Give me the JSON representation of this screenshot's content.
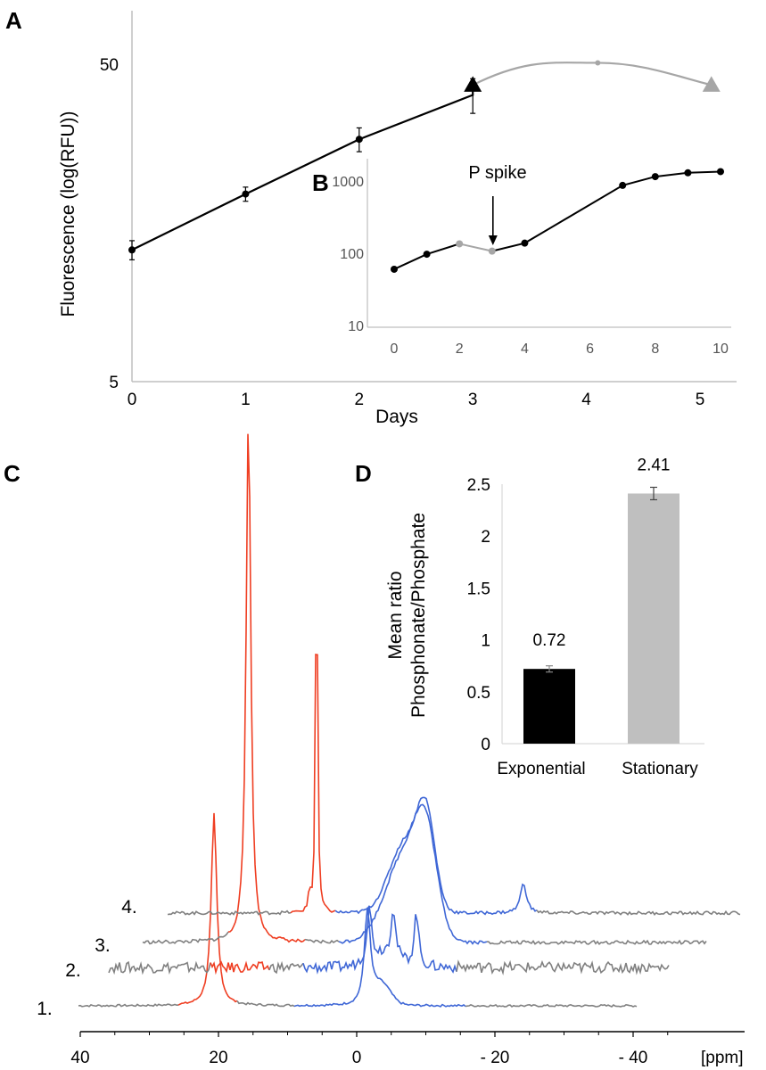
{
  "chart_data": [
    {
      "panel": "A",
      "type": "line",
      "xlabel": "Days",
      "ylabel": "Fluorescence (log(RFU))",
      "yscale": "log",
      "xlim": [
        0,
        5.3
      ],
      "ylim": [
        5,
        50
      ],
      "xticks": [
        "0",
        "1",
        "2",
        "3",
        "4",
        "5"
      ],
      "yticks": [
        "5",
        "50"
      ],
      "colors": {
        "black_series": "#000000",
        "gray_series": "#a6a6a6"
      },
      "series": [
        {
          "color": "black",
          "marker": "circle",
          "points": [
            [
              0,
              13.0
            ],
            [
              1,
              19.5
            ],
            [
              2,
              29.0
            ],
            [
              3,
              40.0
            ]
          ],
          "errors": [
            0.9,
            1.0,
            2.5,
            5.0
          ]
        },
        {
          "color": "black",
          "marker": "triangle",
          "points": [
            [
              3.0,
              43.0
            ]
          ]
        },
        {
          "color": "gray",
          "marker": "circle",
          "points": [
            [
              4.1,
              50.5
            ]
          ],
          "errors": [
            0.6
          ]
        },
        {
          "color": "gray",
          "marker": "triangle",
          "points": [
            [
              5.1,
              43.0
            ]
          ]
        }
      ]
    },
    {
      "panel": "B",
      "type": "line",
      "yscale": "log",
      "xlim": [
        0,
        10
      ],
      "ylim": [
        10,
        1600
      ],
      "xticks": [
        "0",
        "2",
        "4",
        "6",
        "8",
        "10"
      ],
      "yticks": [
        "10",
        "100",
        "1000"
      ],
      "annotation": "P spike",
      "annotation_x": 3,
      "series": [
        {
          "color": "black",
          "points": [
            [
              0,
              60
            ],
            [
              1,
              97
            ],
            [
              2,
              135
            ]
          ]
        },
        {
          "color": "gray",
          "points": [
            [
              2,
              135
            ],
            [
              3,
              107
            ]
          ]
        },
        {
          "color": "black",
          "points": [
            [
              3,
              107
            ],
            [
              4,
              138
            ],
            [
              7,
              870
            ],
            [
              8,
              1150
            ],
            [
              9,
              1300
            ],
            [
              10,
              1350
            ]
          ]
        }
      ]
    },
    {
      "panel": "C",
      "type": "line",
      "xlabel": "[ppm]",
      "xticks": [
        "40",
        "20",
        "0",
        "- 20",
        "- 40"
      ],
      "colors": {
        "baseline": "#808080",
        "phosphonate": "#ef3e22",
        "phosphate": "#3f67d6"
      },
      "spectra": [
        {
          "label": "1.",
          "peaks_ppm": [
            20.5,
            0
          ]
        },
        {
          "label": "2.",
          "peaks_ppm": [
            20.5,
            0,
            -3,
            -6
          ]
        },
        {
          "label": "3.",
          "peaks_ppm": [
            20.5,
            -2,
            -5
          ]
        },
        {
          "label": "4.",
          "peaks_ppm": [
            20.5,
            -6,
            -24
          ]
        }
      ]
    },
    {
      "panel": "D",
      "type": "bar",
      "ylabel": "Mean ratio\nPhosphonate/Phosphate",
      "categories": [
        "Exponential",
        "Stationary"
      ],
      "values": [
        0.72,
        2.41
      ],
      "errors": [
        0.03,
        0.06
      ],
      "value_labels": [
        "0.72",
        "2.41"
      ],
      "ylim": [
        0,
        2.5
      ],
      "yticks": [
        "0",
        "0.5",
        "1",
        "1.5",
        "2",
        "2.5"
      ],
      "colors": [
        "#000000",
        "#bfbfbf"
      ]
    }
  ]
}
